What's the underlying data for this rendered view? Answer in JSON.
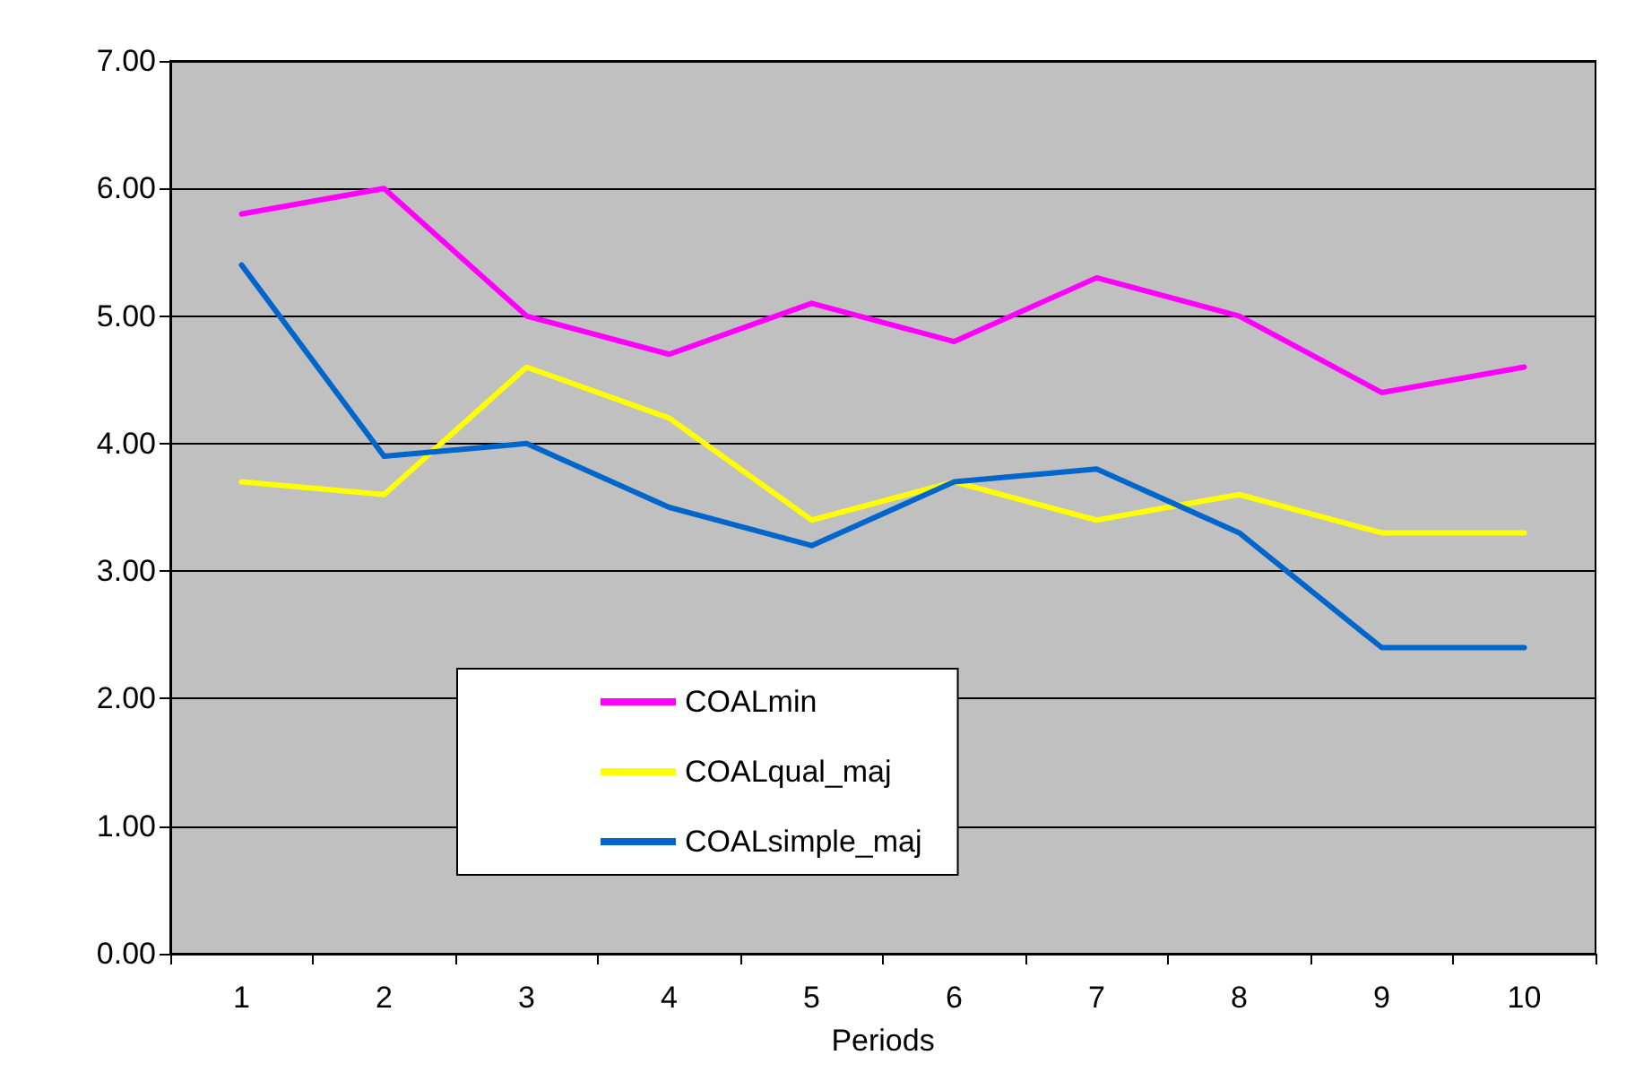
{
  "chart_data": {
    "type": "line",
    "xlabel": "Periods",
    "categories": [
      "1",
      "2",
      "3",
      "4",
      "5",
      "6",
      "7",
      "8",
      "9",
      "10"
    ],
    "series": [
      {
        "name": "COALmin",
        "color": "#ff00ff",
        "values": [
          5.8,
          6.0,
          5.0,
          4.7,
          5.1,
          4.8,
          5.3,
          5.0,
          4.4,
          4.6
        ]
      },
      {
        "name": "COALqual_maj",
        "color": "#ffff00",
        "values": [
          3.7,
          3.6,
          4.6,
          4.2,
          3.4,
          3.7,
          3.4,
          3.6,
          3.3,
          3.3
        ]
      },
      {
        "name": "COALsimple_maj",
        "color": "#0066cc",
        "values": [
          5.4,
          3.9,
          4.0,
          3.5,
          3.2,
          3.7,
          3.8,
          3.3,
          2.4,
          2.4
        ]
      }
    ],
    "ylim": [
      0,
      7
    ],
    "yticks": [
      {
        "value": 0,
        "label": "0.00"
      },
      {
        "value": 1,
        "label": "1.00"
      },
      {
        "value": 2,
        "label": "2.00"
      },
      {
        "value": 3,
        "label": "3.00"
      },
      {
        "value": 4,
        "label": "4.00"
      },
      {
        "value": 5,
        "label": "5.00"
      },
      {
        "value": 6,
        "label": "6.00"
      },
      {
        "value": 7,
        "label": "7.00"
      }
    ],
    "grid": "y",
    "legend": "bottom",
    "marker": "none",
    "line_style": "solid"
  }
}
